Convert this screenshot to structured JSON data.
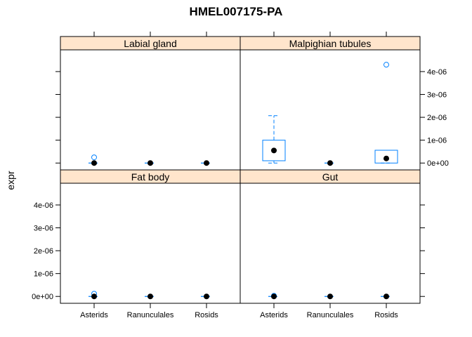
{
  "chart_data": {
    "type": "boxplot",
    "title": "HMEL007175-PA",
    "ylabel": "expr",
    "xlabel": "",
    "categories": [
      "Asterids",
      "Ranunculales",
      "Rosids"
    ],
    "y_ticks": [
      0,
      1e-06,
      2e-06,
      3e-06,
      4e-06
    ],
    "y_tick_labels": [
      "0e+00",
      "1e-06",
      "2e-06",
      "3e-06",
      "4e-06"
    ],
    "ylim": [
      -3e-07,
      4.95e-06
    ],
    "colors": {
      "strip": "#ffe5cc",
      "box": "#0080ff",
      "median_dot": "#000000"
    },
    "panels": [
      {
        "name": "Labial gland",
        "boxes": [
          {
            "category": "Asterids",
            "q1": 0,
            "median": 0,
            "q3": 0,
            "whisker_low": 0,
            "whisker_high": 0,
            "outliers": [
              2.5e-07
            ]
          },
          {
            "category": "Ranunculales",
            "q1": 0,
            "median": 0,
            "q3": 0,
            "whisker_low": 0,
            "whisker_high": 0,
            "outliers": []
          },
          {
            "category": "Rosids",
            "q1": 0,
            "median": 0,
            "q3": 0,
            "whisker_low": 0,
            "whisker_high": 0,
            "outliers": []
          }
        ]
      },
      {
        "name": "Malpighian tubules",
        "boxes": [
          {
            "category": "Asterids",
            "q1": 1e-07,
            "median": 5.5e-07,
            "q3": 1e-06,
            "whisker_low": 0,
            "whisker_high": 2.07e-06,
            "outliers": []
          },
          {
            "category": "Ranunculales",
            "q1": 0,
            "median": 0,
            "q3": 0,
            "whisker_low": 0,
            "whisker_high": 0,
            "outliers": []
          },
          {
            "category": "Rosids",
            "q1": 0,
            "median": 2e-07,
            "q3": 5.6e-07,
            "whisker_low": 0,
            "whisker_high": 5.6e-07,
            "outliers": [
              4.3e-06
            ]
          }
        ]
      },
      {
        "name": "Fat body",
        "boxes": [
          {
            "category": "Asterids",
            "q1": 0,
            "median": 0,
            "q3": 0,
            "whisker_low": 0,
            "whisker_high": 0,
            "outliers": [
              1.2e-07
            ]
          },
          {
            "category": "Ranunculales",
            "q1": 0,
            "median": 0,
            "q3": 0,
            "whisker_low": 0,
            "whisker_high": 0,
            "outliers": []
          },
          {
            "category": "Rosids",
            "q1": 0,
            "median": 0,
            "q3": 0,
            "whisker_low": 0,
            "whisker_high": 0,
            "outliers": []
          }
        ]
      },
      {
        "name": "Gut",
        "boxes": [
          {
            "category": "Asterids",
            "q1": 0,
            "median": 0,
            "q3": 0,
            "whisker_low": 0,
            "whisker_high": 0,
            "outliers": [
              3e-08
            ]
          },
          {
            "category": "Ranunculales",
            "q1": 0,
            "median": 0,
            "q3": 0,
            "whisker_low": 0,
            "whisker_high": 0,
            "outliers": []
          },
          {
            "category": "Rosids",
            "q1": 0,
            "median": 0,
            "q3": 0,
            "whisker_low": 0,
            "whisker_high": 0,
            "outliers": []
          }
        ]
      }
    ]
  }
}
